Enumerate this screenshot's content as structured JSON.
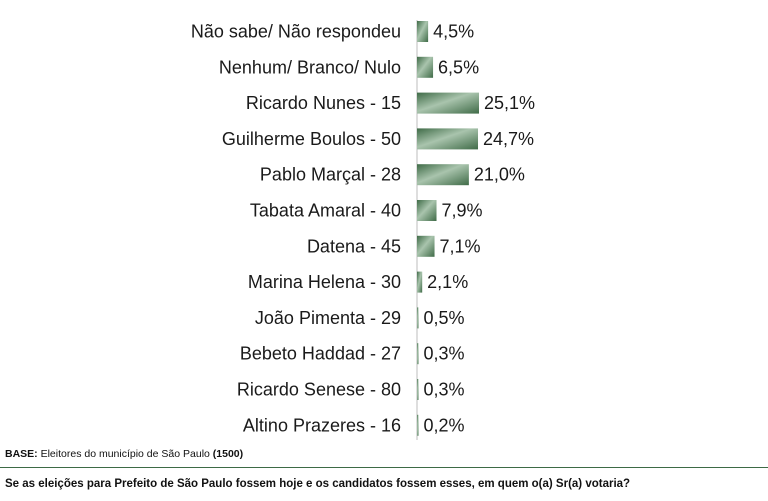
{
  "chart_data": {
    "type": "bar",
    "orientation": "horizontal",
    "categories": [
      "Não sabe/ Não respondeu",
      "Nenhum/ Branco/ Nulo",
      "Ricardo Nunes - 15",
      "Guilherme Boulos - 50",
      "Pablo Marçal - 28",
      "Tabata Amaral - 40",
      "Datena - 45",
      "Marina Helena - 30",
      "João Pimenta - 29",
      "Bebeto Haddad - 27",
      "Ricardo Senese - 80",
      "Altino Prazeres - 16"
    ],
    "values": [
      4.5,
      6.5,
      25.1,
      24.7,
      21.0,
      7.9,
      7.1,
      2.1,
      0.5,
      0.3,
      0.3,
      0.2
    ],
    "value_labels": [
      "4,5%",
      "6,5%",
      "25,1%",
      "24,7%",
      "21,0%",
      "7,9%",
      "7,1%",
      "2,1%",
      "0,5%",
      "0,3%",
      "0,3%",
      "0,2%"
    ],
    "xlim": [
      0,
      25.1
    ],
    "bar_color": "#3f6b47",
    "bar_highlight": "#a9c4ad",
    "grid": false,
    "legend": "none"
  },
  "footer": {
    "base_label": "BASE:",
    "base_text": " Eleitores do município de São Paulo ",
    "base_count": "(1500)",
    "question": "Se as eleições para Prefeito de São Paulo fossem hoje e os candidatos fossem esses, em quem o(a) Sr(a) votaria?"
  }
}
